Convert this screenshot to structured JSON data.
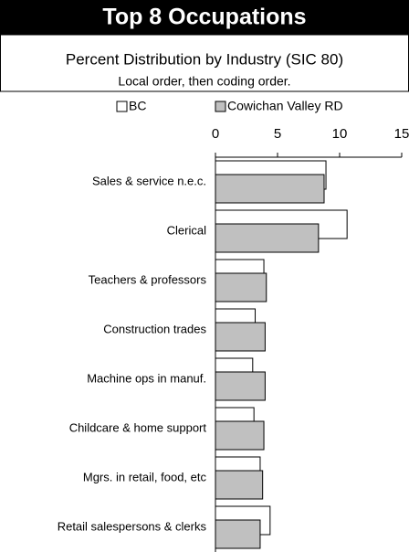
{
  "chart_data": {
    "type": "bar",
    "orientation": "horizontal",
    "title": "Top 8 Occupations",
    "subtitle": "Percent Distribution by Industry (SIC 80)",
    "note": "Local order, then coding order.",
    "categories": [
      "Sales & service  n.e.c.",
      "Clerical",
      "Teachers & professors",
      "Construction trades",
      "Machine ops in manuf.",
      "Childcare & home support",
      "Mgrs. in retail, food, etc",
      "Retail salespersons & clerks"
    ],
    "series": [
      {
        "name": "BC",
        "color": "#ffffff",
        "values": [
          8.9,
          10.6,
          3.9,
          3.2,
          3.0,
          3.1,
          3.6,
          4.4
        ]
      },
      {
        "name": "Cowichan Valley RD",
        "color": "#c0c0c0",
        "values": [
          8.75,
          8.3,
          4.1,
          4.0,
          4.0,
          3.9,
          3.8,
          3.6
        ]
      }
    ],
    "xlim": [
      0,
      15
    ],
    "xticks": [
      0,
      5,
      10,
      15
    ],
    "legend": "top"
  }
}
